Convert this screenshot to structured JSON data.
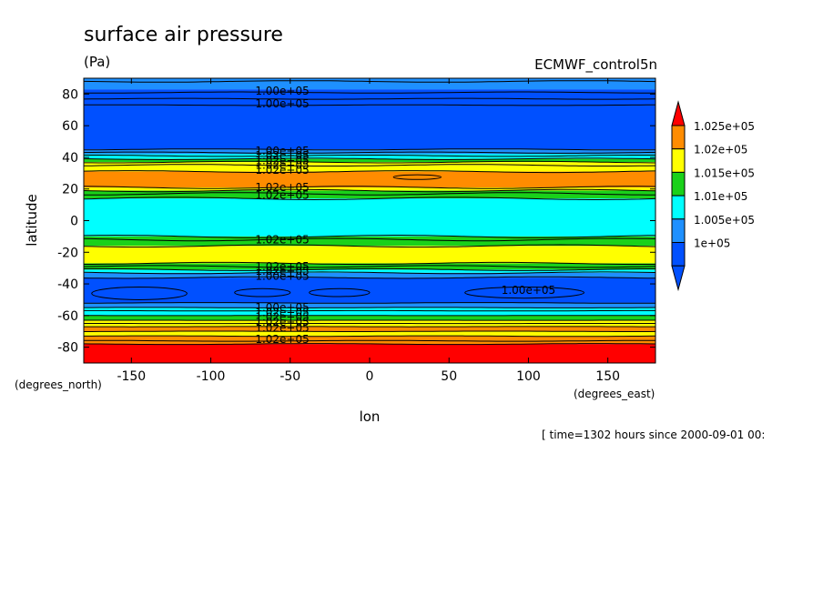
{
  "chart_data": {
    "type": "heatmap",
    "title": "surface air pressure",
    "units": "(Pa)",
    "model": "ECMWF_control5n",
    "xlabel": "lon",
    "ylabel": "latitude",
    "xunits": "(degrees_east)",
    "yunits": "(degrees_north)",
    "time_note": "[ time=1302 hours since 2000-09-01 00:",
    "xlim": [
      -180,
      180
    ],
    "ylim": [
      -90,
      90
    ],
    "xticks": [
      -150,
      -100,
      -50,
      0,
      50,
      100,
      150
    ],
    "yticks": [
      -80,
      -60,
      -40,
      -20,
      0,
      20,
      40,
      60,
      80
    ],
    "bands": [
      {
        "lat": [
          83,
          90
        ],
        "level": "1.005e+05"
      },
      {
        "lat": [
          73,
          83
        ],
        "level": "1e+05"
      },
      {
        "lat": [
          45,
          73
        ],
        "level": "1e+05"
      },
      {
        "lat": [
          42,
          45
        ],
        "level": "1.005e+05"
      },
      {
        "lat": [
          39,
          42
        ],
        "level": "1.01e+05"
      },
      {
        "lat": [
          37,
          39
        ],
        "level": "1.015e+05"
      },
      {
        "lat": [
          35,
          37
        ],
        "level": "1.02e+05"
      },
      {
        "lat": [
          31,
          35
        ],
        "level": "1.02e+05"
      },
      {
        "lat": [
          21,
          31
        ],
        "level": "1.025e+05"
      },
      {
        "lat": [
          19,
          21
        ],
        "level": "1.02e+05"
      },
      {
        "lat": [
          14,
          19
        ],
        "level": "1.015e+05"
      },
      {
        "lat": [
          -10,
          14
        ],
        "level": "1.01e+05"
      },
      {
        "lat": [
          -16,
          -10
        ],
        "level": "1.015e+05"
      },
      {
        "lat": [
          -27,
          -16
        ],
        "level": "1.02e+05"
      },
      {
        "lat": [
          -31,
          -27
        ],
        "level": "1.015e+05"
      },
      {
        "lat": [
          -33,
          -31
        ],
        "level": "1.01e+05"
      },
      {
        "lat": [
          -36,
          -33
        ],
        "level": "1.005e+05"
      },
      {
        "lat": [
          -52,
          -36
        ],
        "level": "1e+05"
      },
      {
        "lat": [
          -55,
          -52
        ],
        "level": "1.005e+05"
      },
      {
        "lat": [
          -60,
          -55
        ],
        "level": "1.01e+05"
      },
      {
        "lat": [
          -63,
          -60
        ],
        "level": "1.015e+05"
      },
      {
        "lat": [
          -67,
          -63
        ],
        "level": "1.02e+05"
      },
      {
        "lat": [
          -70,
          -67
        ],
        "level": "1.025e+05"
      },
      {
        "lat": [
          -73,
          -70
        ],
        "level": "1.02e+05"
      },
      {
        "lat": [
          -78,
          -73
        ],
        "level": "1.025e+05"
      },
      {
        "lat": [
          -90,
          -78
        ],
        "level": "above 1.025e+05"
      }
    ],
    "low_cells": [
      {
        "lon": [
          -175,
          -115
        ],
        "lat": [
          -50,
          -42
        ]
      },
      {
        "lon": [
          -85,
          -50
        ],
        "lat": [
          -48,
          -43
        ]
      },
      {
        "lon": [
          -38,
          0
        ],
        "lat": [
          -48,
          -43
        ]
      },
      {
        "lon": [
          60,
          135
        ],
        "lat": [
          -49,
          -42
        ]
      }
    ],
    "high_cells": [
      {
        "lon": [
          15,
          45
        ],
        "lat": [
          26,
          29
        ]
      }
    ],
    "contour_lines": [
      88,
      81,
      77,
      73,
      45,
      43,
      41,
      39,
      37,
      35,
      31,
      21,
      19,
      17,
      14,
      -10,
      -12,
      -16,
      -27,
      -29,
      -31,
      -33,
      -36,
      -52,
      -55,
      -57,
      -60,
      -63,
      -65,
      -67,
      -70,
      -73,
      -76,
      -78
    ],
    "contour_labels": [
      {
        "text": "1.00e+05",
        "lon": -55,
        "lat": 82
      },
      {
        "text": "1.00e+05",
        "lon": -55,
        "lat": 74
      },
      {
        "text": "1.00e+05",
        "lon": -55,
        "lat": 44
      },
      {
        "text": "1.02e+05",
        "lon": -55,
        "lat": 41
      },
      {
        "text": "1.02e+05",
        "lon": -55,
        "lat": 38
      },
      {
        "text": "1.02e+05",
        "lon": -55,
        "lat": 35
      },
      {
        "text": "1.02e+05",
        "lon": -55,
        "lat": 32
      },
      {
        "text": "1.02e+05",
        "lon": -55,
        "lat": 21
      },
      {
        "text": "1.02e+05",
        "lon": -55,
        "lat": 16
      },
      {
        "text": "1.02e+05",
        "lon": -55,
        "lat": -12
      },
      {
        "text": "1.02e+05",
        "lon": -55,
        "lat": -29
      },
      {
        "text": "1.02e+05",
        "lon": -55,
        "lat": -32
      },
      {
        "text": "1.00e+05",
        "lon": -55,
        "lat": -35
      },
      {
        "text": "1.00e+05",
        "lon": 100,
        "lat": -44
      },
      {
        "text": "1.00e+05",
        "lon": -55,
        "lat": -55
      },
      {
        "text": "1.02e+05",
        "lon": -55,
        "lat": -58
      },
      {
        "text": "1.02e+05",
        "lon": -55,
        "lat": -61
      },
      {
        "text": "1.02e+05",
        "lon": -55,
        "lat": -64
      },
      {
        "text": "1.02e+05",
        "lon": -55,
        "lat": -68
      },
      {
        "text": "1.02e+05",
        "lon": -55,
        "lat": -75
      }
    ],
    "legend": [
      {
        "label": "1.025e+05",
        "color": "#ff8c00"
      },
      {
        "label": "1.02e+05",
        "color": "#ffff00"
      },
      {
        "label": "1.015e+05",
        "color": "#1ad11a"
      },
      {
        "label": "1.01e+05",
        "color": "#00ffff"
      },
      {
        "label": "1.005e+05",
        "color": "#1e90ff"
      },
      {
        "label": "1e+05",
        "color": "#0050ff"
      }
    ],
    "colors": {
      "above 1.025e+05": "#ff0000",
      "1.025e+05": "#ff8c00",
      "1.02e+05": "#ffff00",
      "1.015e+05": "#1ad11a",
      "1.01e+05": "#00ffff",
      "1.005e+05": "#1e90ff",
      "1e+05": "#0050ff",
      "below 1e+05": "#0050ff",
      "legend_top_arrow": "#ff0000",
      "legend_bottom_arrow": "#0050ff"
    }
  }
}
